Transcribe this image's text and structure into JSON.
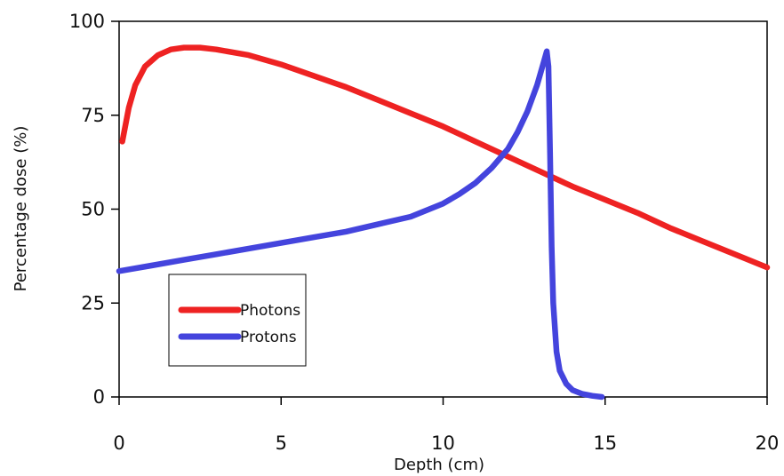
{
  "chart_data": {
    "type": "line",
    "xlabel": "Depth (cm)",
    "ylabel": "Percentage dose (%)",
    "xlim": [
      0,
      20
    ],
    "ylim": [
      0,
      100
    ],
    "xticks": [
      0,
      5,
      10,
      15,
      20
    ],
    "yticks": [
      0,
      25,
      50,
      75,
      100
    ],
    "grid": false,
    "legend": "lower-left",
    "series": [
      {
        "name": "Photons",
        "color": "#ee2222",
        "x": [
          0.1,
          0.3,
          0.5,
          0.8,
          1.2,
          1.6,
          2.0,
          2.5,
          3.0,
          4.0,
          5.0,
          6.0,
          7.0,
          8.0,
          9.0,
          10.0,
          11.0,
          12.0,
          13.0,
          14.0,
          15.0,
          16.0,
          17.0,
          18.0,
          19.0,
          20.0
        ],
        "y": [
          68,
          77,
          83,
          88,
          91,
          92.5,
          93,
          93,
          92.5,
          91,
          88.5,
          85.5,
          82.5,
          79,
          75.5,
          72,
          68,
          64,
          60,
          56,
          52.5,
          49,
          45,
          41.5,
          38,
          34.5
        ]
      },
      {
        "name": "Protons",
        "color": "#4444dd",
        "x": [
          0,
          1,
          2,
          3,
          4,
          5,
          6,
          7,
          8,
          9,
          10,
          10.5,
          11,
          11.5,
          12,
          12.3,
          12.6,
          12.9,
          13.1,
          13.2,
          13.25,
          13.3,
          13.35,
          13.4,
          13.5,
          13.6,
          13.8,
          14.0,
          14.3,
          14.6,
          14.9
        ],
        "y": [
          33.5,
          35,
          36.5,
          38,
          39.5,
          41,
          42.5,
          44,
          46,
          48,
          51.5,
          54,
          57,
          61,
          66,
          70.5,
          76,
          83,
          89,
          92,
          88,
          65,
          40,
          25,
          12,
          7,
          3.5,
          1.8,
          0.8,
          0.3,
          0
        ]
      }
    ]
  }
}
